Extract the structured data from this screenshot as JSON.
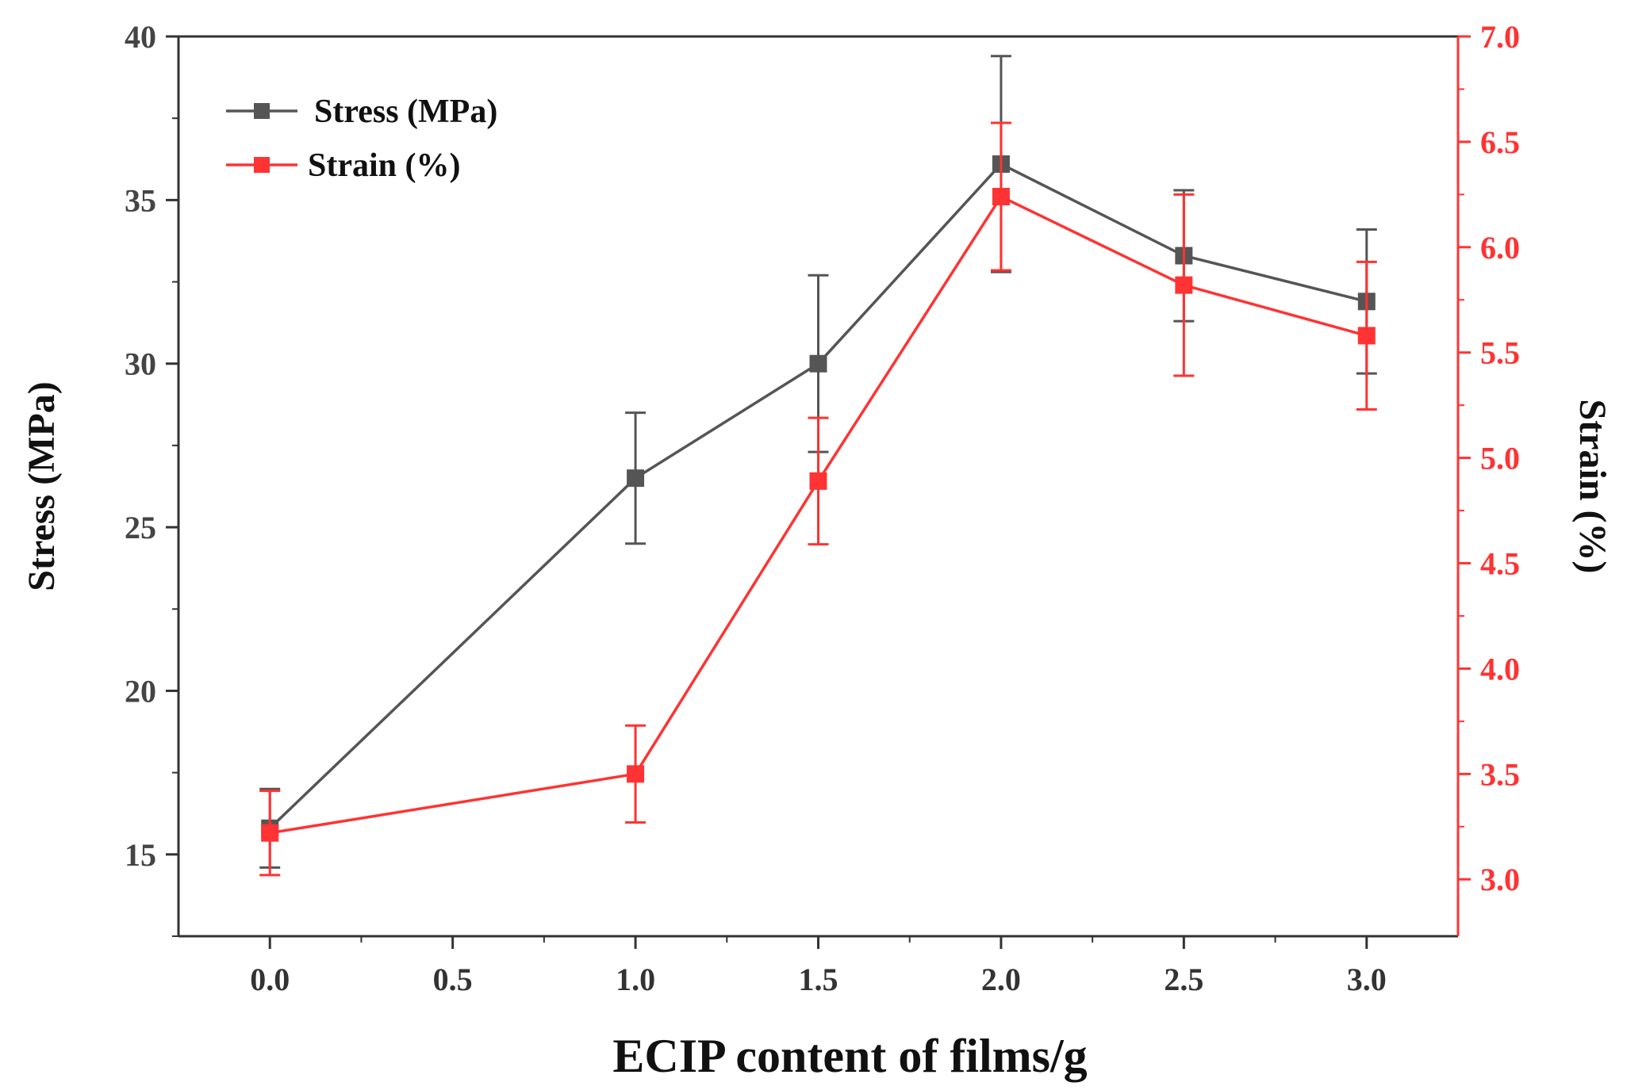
{
  "chart_data": {
    "type": "line",
    "xlabel": "ECIP content of films/g",
    "xlim": [
      -0.25,
      3.25
    ],
    "x_ticks": [
      "0.0",
      "0.5",
      "1.0",
      "1.5",
      "2.0",
      "2.5",
      "3.0"
    ],
    "x_tick_values": [
      0.0,
      0.5,
      1.0,
      1.5,
      2.0,
      2.5,
      3.0
    ],
    "left_axis": {
      "label": "Stress (MPa)",
      "ylim": [
        12.5,
        40
      ],
      "ticks": [
        "15",
        "20",
        "25",
        "30",
        "35",
        "40"
      ],
      "tick_values": [
        15,
        20,
        25,
        30,
        35,
        40
      ]
    },
    "right_axis": {
      "label": "Strain (%)",
      "ylim": [
        2.73,
        7.0
      ],
      "ticks": [
        "3.0",
        "3.5",
        "4.0",
        "4.5",
        "5.0",
        "5.5",
        "6.0",
        "6.5",
        "7.0"
      ],
      "tick_values": [
        3.0,
        3.5,
        4.0,
        4.5,
        5.0,
        5.5,
        6.0,
        6.5,
        7.0
      ]
    },
    "series": [
      {
        "name": "Stress (MPa)",
        "axis": "left",
        "color": "#555555",
        "x": [
          0.0,
          1.0,
          1.5,
          2.0,
          2.5,
          3.0
        ],
        "values": [
          15.8,
          26.5,
          30.0,
          36.1,
          33.3,
          31.9
        ],
        "errors": [
          1.2,
          2.0,
          2.7,
          3.3,
          2.0,
          2.2
        ]
      },
      {
        "name": "Strain (%)",
        "axis": "right",
        "color": "#ff3333",
        "x": [
          0.0,
          1.0,
          1.5,
          2.0,
          2.5,
          3.0
        ],
        "values": [
          3.22,
          3.5,
          4.89,
          6.24,
          5.82,
          5.58
        ],
        "errors": [
          0.2,
          0.23,
          0.3,
          0.35,
          0.43,
          0.35
        ]
      }
    ]
  }
}
